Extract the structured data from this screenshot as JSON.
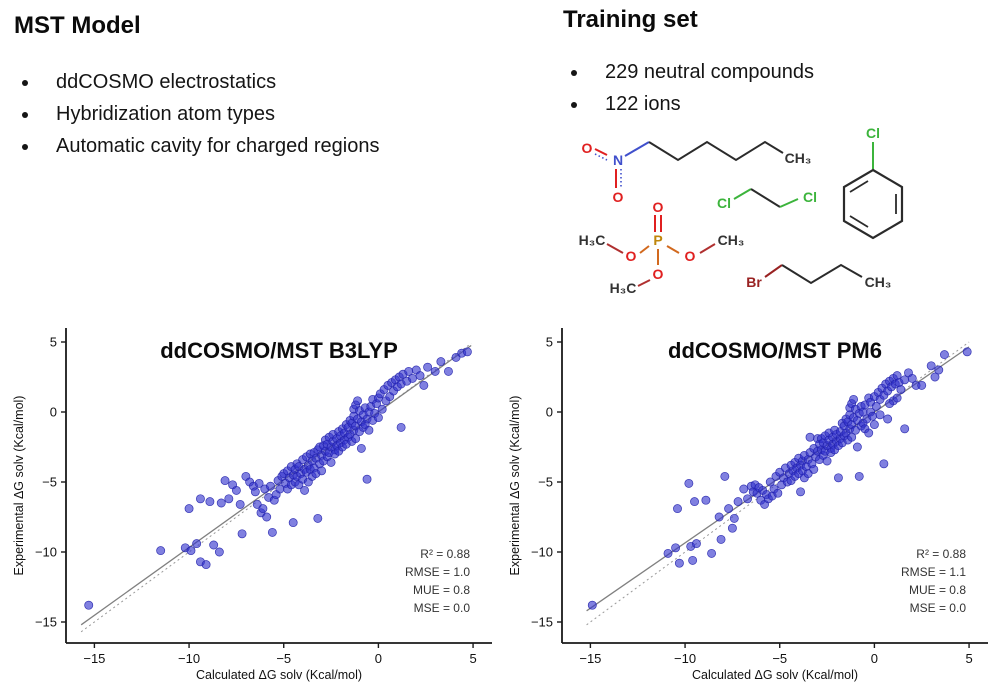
{
  "left_panel": {
    "title": "MST Model",
    "bullets": [
      "ddCOSMO electrostatics",
      "Hybridization atom types",
      "Automatic cavity for charged regions"
    ]
  },
  "right_panel": {
    "title": "Training set",
    "bullets": [
      "229 neutral compounds",
      "122 ions"
    ]
  },
  "molecules": {
    "nitrohexane": {
      "o_top": "O",
      "n": "N",
      "o_bottom": "O",
      "ch3": "CH₃"
    },
    "dichloroethane": {
      "cl_left": "Cl",
      "cl_right": "Cl"
    },
    "chlorobenzene": {
      "cl": "Cl"
    },
    "trimethyl_phosphate": {
      "o_top": "O",
      "p": "P",
      "o_left": "O",
      "o_right": "O",
      "o_bottom": "O",
      "h3c_left": "H₃C",
      "ch3_right": "CH₃",
      "h3c_bottom": "H₃C"
    },
    "bromobutane": {
      "br": "Br",
      "ch3": "CH₃"
    }
  },
  "colors": {
    "marker": "#3232cd",
    "marker_edge": "#2020aa",
    "oxygen": "#e02020",
    "nitrogen": "#4050cc",
    "chlorine": "#3cb43c",
    "bromine": "#992222",
    "phosphorus": "#bf860b",
    "bond": "#2b2b2b",
    "fit_line": "#808080",
    "identity_line": "#999999"
  },
  "chart_data": [
    {
      "type": "scatter",
      "title": "ddCOSMO/MST B3LYP",
      "xlabel": "Calculated ΔG solv (Kcal/mol)",
      "ylabel": "Experimental ΔG solv (Kcal/mol)",
      "xlim": [
        -16.5,
        6.0
      ],
      "ylim": [
        -16.5,
        6.0
      ],
      "xticks": [
        -15,
        -10,
        -5,
        0,
        5
      ],
      "yticks": [
        5,
        0,
        -5,
        -10,
        -15
      ],
      "grid": false,
      "legend": "none",
      "stats": [
        "R² = 0.88",
        "RMSE = 1.0",
        "MUE = 0.8",
        "MSE = 0.0"
      ],
      "lines": [
        {
          "name": "identity",
          "style": "dashed",
          "x1": -15.7,
          "y1": -15.7,
          "x2": 4.9,
          "y2": 4.9
        },
        {
          "name": "fit",
          "style": "solid",
          "x1": -15.7,
          "y1": -15.2,
          "x2": 4.9,
          "y2": 4.75
        }
      ],
      "points": [
        [
          -15.3,
          -13.8
        ],
        [
          -11.5,
          -9.9
        ],
        [
          -10.2,
          -9.7
        ],
        [
          -9.9,
          -9.9
        ],
        [
          -9.6,
          -9.4
        ],
        [
          -9.4,
          -10.7
        ],
        [
          -9.1,
          -10.9
        ],
        [
          -8.7,
          -9.5
        ],
        [
          -8.4,
          -10.0
        ],
        [
          -7.2,
          -8.7
        ],
        [
          -10.0,
          -6.9
        ],
        [
          -9.4,
          -6.2
        ],
        [
          -8.9,
          -6.4
        ],
        [
          -8.3,
          -6.5
        ],
        [
          -8.1,
          -4.9
        ],
        [
          -7.9,
          -6.2
        ],
        [
          -7.7,
          -5.2
        ],
        [
          -7.5,
          -5.6
        ],
        [
          -7.3,
          -6.6
        ],
        [
          -7.0,
          -4.6
        ],
        [
          -6.8,
          -5.0
        ],
        [
          -6.6,
          -5.3
        ],
        [
          -6.5,
          -5.7
        ],
        [
          -6.4,
          -6.6
        ],
        [
          -6.3,
          -5.1
        ],
        [
          -6.2,
          -7.2
        ],
        [
          -6.1,
          -6.9
        ],
        [
          -6.0,
          -5.5
        ],
        [
          -5.9,
          -7.5
        ],
        [
          -5.8,
          -6.1
        ],
        [
          -5.7,
          -5.3
        ],
        [
          -5.6,
          -8.6
        ],
        [
          -5.5,
          -6.3
        ],
        [
          -5.4,
          -5.9
        ],
        [
          -5.3,
          -4.9
        ],
        [
          -5.2,
          -5.5
        ],
        [
          -5.1,
          -4.6
        ],
        [
          -5.0,
          -4.4
        ],
        [
          -4.9,
          -5.1
        ],
        [
          -4.8,
          -4.2
        ],
        [
          -4.8,
          -5.5
        ],
        [
          -4.7,
          -4.7
        ],
        [
          -4.6,
          -3.9
        ],
        [
          -4.6,
          -5.2
        ],
        [
          -4.5,
          -4.5
        ],
        [
          -4.5,
          -7.9
        ],
        [
          -4.4,
          -4.1
        ],
        [
          -4.4,
          -5.0
        ],
        [
          -4.3,
          -3.7
        ],
        [
          -4.3,
          -4.6
        ],
        [
          -4.2,
          -5.2
        ],
        [
          -4.2,
          -3.9
        ],
        [
          -4.1,
          -4.4
        ],
        [
          -4.0,
          -3.4
        ],
        [
          -4.0,
          -4.8
        ],
        [
          -3.9,
          -4.1
        ],
        [
          -3.9,
          -5.6
        ],
        [
          -3.8,
          -3.2
        ],
        [
          -3.8,
          -4.3
        ],
        [
          -3.7,
          -3.8
        ],
        [
          -3.7,
          -5.0
        ],
        [
          -3.6,
          -3.0
        ],
        [
          -3.6,
          -4.1
        ],
        [
          -3.5,
          -3.5
        ],
        [
          -3.5,
          -4.6
        ],
        [
          -3.4,
          -2.9
        ],
        [
          -3.4,
          -4.0
        ],
        [
          -3.3,
          -3.3
        ],
        [
          -3.3,
          -4.4
        ],
        [
          -3.2,
          -2.7
        ],
        [
          -3.2,
          -7.6
        ],
        [
          -3.1,
          -3.7
        ],
        [
          -3.1,
          -2.5
        ],
        [
          -3.0,
          -3.1
        ],
        [
          -3.0,
          -4.2
        ],
        [
          -2.9,
          -2.4
        ],
        [
          -2.9,
          -3.5
        ],
        [
          -2.8,
          -2.8
        ],
        [
          -2.8,
          -2.0
        ],
        [
          -2.7,
          -3.2
        ],
        [
          -2.7,
          -2.3
        ],
        [
          -2.6,
          -1.8
        ],
        [
          -2.6,
          -2.9
        ],
        [
          -2.5,
          -2.5
        ],
        [
          -2.5,
          -3.6
        ],
        [
          -2.4,
          -2.1
        ],
        [
          -2.4,
          -1.6
        ],
        [
          -2.3,
          -2.7
        ],
        [
          -2.3,
          -3.0
        ],
        [
          -2.2,
          -1.9
        ],
        [
          -2.2,
          -2.4
        ],
        [
          -2.1,
          -1.4
        ],
        [
          -2.1,
          -2.8
        ],
        [
          -2.0,
          -2.2
        ],
        [
          -2.0,
          -1.7
        ],
        [
          -1.9,
          -2.5
        ],
        [
          -1.9,
          -1.2
        ],
        [
          -1.8,
          -2.0
        ],
        [
          -1.8,
          -1.5
        ],
        [
          -1.7,
          -0.9
        ],
        [
          -1.7,
          -2.3
        ],
        [
          -1.6,
          -1.8
        ],
        [
          -1.6,
          -1.1
        ],
        [
          -1.5,
          -0.6
        ],
        [
          -1.5,
          -1.6
        ],
        [
          -1.4,
          -2.1
        ],
        [
          -1.4,
          -0.8
        ],
        [
          -1.3,
          -1.3
        ],
        [
          -1.3,
          0.2
        ],
        [
          -1.3,
          -0.3
        ],
        [
          -1.2,
          -1.0
        ],
        [
          -1.2,
          0.5
        ],
        [
          -1.2,
          -1.9
        ],
        [
          -1.1,
          -0.5
        ],
        [
          -1.1,
          0.8
        ],
        [
          -1.0,
          -1.4
        ],
        [
          -1.0,
          0.1
        ],
        [
          -0.9,
          -0.7
        ],
        [
          -0.9,
          -2.6
        ],
        [
          -0.6,
          -4.8
        ],
        [
          -0.8,
          -0.2
        ],
        [
          -0.8,
          -1.1
        ],
        [
          -0.7,
          0.3
        ],
        [
          -0.7,
          -0.9
        ],
        [
          -0.6,
          -0.5
        ],
        [
          -0.5,
          0.0
        ],
        [
          -0.5,
          -1.3
        ],
        [
          -0.4,
          0.4
        ],
        [
          -0.3,
          -0.6
        ],
        [
          -0.3,
          0.9
        ],
        [
          -0.2,
          -0.1
        ],
        [
          -0.1,
          0.6
        ],
        [
          0.0,
          1.0
        ],
        [
          0.0,
          -0.4
        ],
        [
          0.1,
          1.3
        ],
        [
          0.2,
          0.2
        ],
        [
          0.3,
          1.6
        ],
        [
          0.4,
          0.8
        ],
        [
          0.5,
          1.9
        ],
        [
          0.6,
          1.1
        ],
        [
          0.7,
          2.1
        ],
        [
          0.8,
          1.5
        ],
        [
          0.9,
          2.3
        ],
        [
          1.0,
          1.8
        ],
        [
          1.1,
          2.5
        ],
        [
          1.2,
          -1.1
        ],
        [
          1.2,
          2.0
        ],
        [
          1.3,
          2.7
        ],
        [
          1.5,
          2.2
        ],
        [
          1.6,
          2.9
        ],
        [
          1.8,
          2.4
        ],
        [
          2.0,
          3.0
        ],
        [
          2.2,
          2.6
        ],
        [
          2.6,
          3.2
        ],
        [
          3.0,
          2.9
        ],
        [
          3.3,
          3.6
        ],
        [
          3.7,
          2.9
        ],
        [
          4.1,
          3.9
        ],
        [
          4.4,
          4.2
        ],
        [
          4.7,
          4.3
        ],
        [
          2.4,
          1.9
        ]
      ]
    },
    {
      "type": "scatter",
      "title": "ddCOSMO/MST PM6",
      "xlabel": "Calculated ΔG solv (Kcal/mol)",
      "ylabel": "Experimental ΔG solv (Kcal/mol)",
      "xlim": [
        -16.5,
        6.0
      ],
      "ylim": [
        -16.5,
        6.0
      ],
      "xticks": [
        -15,
        -10,
        -5,
        0,
        5
      ],
      "yticks": [
        5,
        0,
        -5,
        -10,
        -15
      ],
      "grid": false,
      "legend": "none",
      "stats": [
        "R² = 0.88",
        "RMSE = 1.1",
        "MUE = 0.8",
        "MSE = 0.0"
      ],
      "lines": [
        {
          "name": "identity",
          "style": "dashed",
          "x1": -15.2,
          "y1": -15.2,
          "x2": 5.0,
          "y2": 5.0
        },
        {
          "name": "fit",
          "style": "solid",
          "x1": -15.2,
          "y1": -14.2,
          "x2": 5.0,
          "y2": 4.65
        }
      ],
      "points": [
        [
          -14.9,
          -13.8
        ],
        [
          -10.9,
          -10.1
        ],
        [
          -10.5,
          -9.7
        ],
        [
          -10.3,
          -10.8
        ],
        [
          -9.7,
          -9.6
        ],
        [
          -9.6,
          -10.6
        ],
        [
          -9.4,
          -9.4
        ],
        [
          -8.6,
          -10.1
        ],
        [
          -8.1,
          -9.1
        ],
        [
          -7.5,
          -8.3
        ],
        [
          -10.4,
          -6.9
        ],
        [
          -9.8,
          -5.1
        ],
        [
          -9.5,
          -6.4
        ],
        [
          -8.9,
          -6.3
        ],
        [
          -8.2,
          -7.5
        ],
        [
          -7.9,
          -4.6
        ],
        [
          -7.7,
          -6.9
        ],
        [
          -7.4,
          -7.6
        ],
        [
          -7.2,
          -6.4
        ],
        [
          -6.9,
          -5.5
        ],
        [
          -6.7,
          -6.2
        ],
        [
          -6.5,
          -5.3
        ],
        [
          -6.4,
          -5.7
        ],
        [
          -6.3,
          -5.2
        ],
        [
          -6.2,
          -5.8
        ],
        [
          -6.1,
          -5.4
        ],
        [
          -6.0,
          -6.3
        ],
        [
          -5.9,
          -5.6
        ],
        [
          -5.8,
          -6.6
        ],
        [
          -5.7,
          -5.9
        ],
        [
          -5.6,
          -6.2
        ],
        [
          -5.5,
          -5.0
        ],
        [
          -5.4,
          -6.0
        ],
        [
          -5.3,
          -5.5
        ],
        [
          -5.2,
          -4.6
        ],
        [
          -5.1,
          -5.8
        ],
        [
          -5.0,
          -4.3
        ],
        [
          -4.9,
          -5.2
        ],
        [
          -4.8,
          -4.7
        ],
        [
          -4.7,
          -4.0
        ],
        [
          -4.6,
          -5.0
        ],
        [
          -4.5,
          -4.4
        ],
        [
          -4.4,
          -3.8
        ],
        [
          -4.4,
          -4.9
        ],
        [
          -4.3,
          -4.2
        ],
        [
          -4.2,
          -3.6
        ],
        [
          -4.2,
          -4.6
        ],
        [
          -4.1,
          -4.0
        ],
        [
          -4.0,
          -3.3
        ],
        [
          -4.0,
          -4.4
        ],
        [
          -3.9,
          -3.8
        ],
        [
          -3.9,
          -5.7
        ],
        [
          -3.8,
          -3.5
        ],
        [
          -3.8,
          -4.2
        ],
        [
          -3.7,
          -3.1
        ],
        [
          -3.7,
          -4.7
        ],
        [
          -3.6,
          -3.9
        ],
        [
          -3.5,
          -3.4
        ],
        [
          -3.5,
          -4.4
        ],
        [
          -3.4,
          -2.9
        ],
        [
          -3.4,
          -1.8
        ],
        [
          -3.3,
          -3.7
        ],
        [
          -3.2,
          -2.6
        ],
        [
          -3.2,
          -4.1
        ],
        [
          -3.1,
          -3.2
        ],
        [
          -3.0,
          -2.8
        ],
        [
          -3.0,
          -1.9
        ],
        [
          -2.9,
          -3.4
        ],
        [
          -2.9,
          -2.3
        ],
        [
          -2.8,
          -2.7
        ],
        [
          -2.8,
          -1.9
        ],
        [
          -2.7,
          -3.1
        ],
        [
          -2.7,
          -2.2
        ],
        [
          -2.6,
          -1.7
        ],
        [
          -2.6,
          -2.8
        ],
        [
          -2.5,
          -2.4
        ],
        [
          -2.5,
          -3.5
        ],
        [
          -2.4,
          -2.0
        ],
        [
          -2.4,
          -1.5
        ],
        [
          -2.3,
          -2.6
        ],
        [
          -2.3,
          -2.9
        ],
        [
          -2.2,
          -1.8
        ],
        [
          -2.2,
          -2.3
        ],
        [
          -2.1,
          -1.3
        ],
        [
          -2.1,
          -2.7
        ],
        [
          -2.0,
          -2.1
        ],
        [
          -2.0,
          -1.6
        ],
        [
          -1.9,
          -2.4
        ],
        [
          -1.9,
          -4.7
        ],
        [
          -1.8,
          -1.9
        ],
        [
          -1.8,
          -1.4
        ],
        [
          -1.7,
          -0.8
        ],
        [
          -1.7,
          -2.2
        ],
        [
          -1.6,
          -1.7
        ],
        [
          -1.6,
          -1.0
        ],
        [
          -1.5,
          -0.5
        ],
        [
          -1.5,
          -1.5
        ],
        [
          -1.4,
          -2.0
        ],
        [
          -1.4,
          -0.7
        ],
        [
          -1.3,
          -1.2
        ],
        [
          -1.3,
          0.3
        ],
        [
          -1.3,
          -0.2
        ],
        [
          -1.2,
          -0.9
        ],
        [
          -1.2,
          0.6
        ],
        [
          -1.2,
          -1.8
        ],
        [
          -1.1,
          -0.4
        ],
        [
          -1.1,
          0.9
        ],
        [
          -1.0,
          -1.3
        ],
        [
          -1.0,
          0.2
        ],
        [
          -0.9,
          -0.6
        ],
        [
          -0.9,
          -2.5
        ],
        [
          -0.8,
          -4.6
        ],
        [
          -0.8,
          -0.1
        ],
        [
          -0.7,
          -1.0
        ],
        [
          -0.7,
          0.4
        ],
        [
          -0.6,
          -0.8
        ],
        [
          -0.6,
          0.0
        ],
        [
          -0.5,
          -1.2
        ],
        [
          -0.5,
          0.5
        ],
        [
          -0.4,
          -0.5
        ],
        [
          -0.3,
          1.0
        ],
        [
          -0.3,
          -1.5
        ],
        [
          -0.2,
          0.0
        ],
        [
          -0.2,
          0.7
        ],
        [
          -0.1,
          -0.3
        ],
        [
          0.0,
          1.1
        ],
        [
          0.0,
          -0.9
        ],
        [
          0.1,
          0.4
        ],
        [
          0.2,
          1.4
        ],
        [
          0.3,
          -0.2
        ],
        [
          0.3,
          0.9
        ],
        [
          0.4,
          1.7
        ],
        [
          0.5,
          -3.7
        ],
        [
          0.5,
          1.2
        ],
        [
          0.6,
          2.0
        ],
        [
          0.7,
          1.5
        ],
        [
          0.8,
          2.2
        ],
        [
          0.9,
          1.8
        ],
        [
          1.0,
          2.4
        ],
        [
          1.1,
          2.0
        ],
        [
          1.2,
          2.6
        ],
        [
          1.3,
          2.1
        ],
        [
          1.4,
          1.6
        ],
        [
          1.6,
          -1.2
        ],
        [
          1.6,
          2.3
        ],
        [
          1.8,
          2.8
        ],
        [
          2.0,
          2.4
        ],
        [
          2.2,
          1.9
        ],
        [
          2.5,
          1.9
        ],
        [
          3.0,
          3.3
        ],
        [
          3.4,
          3.0
        ],
        [
          3.7,
          4.1
        ],
        [
          4.9,
          4.3
        ],
        [
          3.2,
          2.5
        ],
        [
          0.7,
          -0.5
        ],
        [
          1.0,
          0.8
        ],
        [
          1.2,
          1.0
        ],
        [
          0.8,
          0.6
        ]
      ]
    }
  ]
}
